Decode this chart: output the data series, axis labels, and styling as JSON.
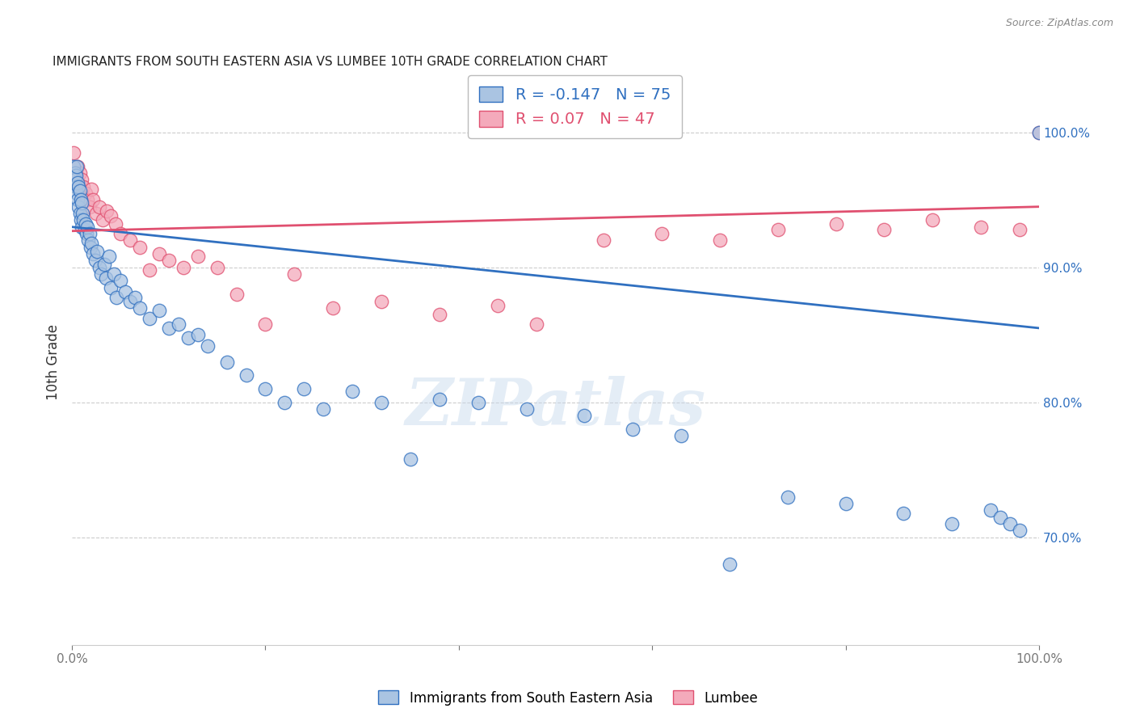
{
  "title": "IMMIGRANTS FROM SOUTH EASTERN ASIA VS LUMBEE 10TH GRADE CORRELATION CHART",
  "source": "Source: ZipAtlas.com",
  "ylabel": "10th Grade",
  "r_blue": -0.147,
  "n_blue": 75,
  "r_pink": 0.07,
  "n_pink": 47,
  "blue_color": "#aac4e2",
  "pink_color": "#f4aabb",
  "blue_line_color": "#3070c0",
  "pink_line_color": "#e05070",
  "grid_color": "#cccccc",
  "right_axis_color": "#3070c0",
  "watermark": "ZIPatlas",
  "xlim": [
    0.0,
    1.0
  ],
  "ylim": [
    0.62,
    1.04
  ],
  "blue_x": [
    0.002,
    0.003,
    0.003,
    0.004,
    0.004,
    0.005,
    0.005,
    0.006,
    0.006,
    0.007,
    0.007,
    0.008,
    0.008,
    0.009,
    0.009,
    0.01,
    0.01,
    0.011,
    0.012,
    0.013,
    0.014,
    0.015,
    0.016,
    0.017,
    0.018,
    0.019,
    0.02,
    0.022,
    0.024,
    0.026,
    0.028,
    0.03,
    0.033,
    0.035,
    0.038,
    0.04,
    0.043,
    0.046,
    0.05,
    0.055,
    0.06,
    0.065,
    0.07,
    0.08,
    0.09,
    0.1,
    0.11,
    0.12,
    0.13,
    0.14,
    0.16,
    0.18,
    0.2,
    0.22,
    0.24,
    0.26,
    0.29,
    0.32,
    0.35,
    0.38,
    0.42,
    0.47,
    0.53,
    0.58,
    0.63,
    0.68,
    0.74,
    0.8,
    0.86,
    0.91,
    0.95,
    0.96,
    0.97,
    0.98,
    1.0
  ],
  "blue_y": [
    0.975,
    0.97,
    0.965,
    0.968,
    0.96,
    0.975,
    0.955,
    0.963,
    0.95,
    0.96,
    0.945,
    0.957,
    0.94,
    0.95,
    0.935,
    0.948,
    0.93,
    0.94,
    0.935,
    0.928,
    0.932,
    0.925,
    0.93,
    0.92,
    0.925,
    0.915,
    0.918,
    0.91,
    0.905,
    0.912,
    0.9,
    0.895,
    0.902,
    0.892,
    0.908,
    0.885,
    0.895,
    0.878,
    0.89,
    0.882,
    0.875,
    0.878,
    0.87,
    0.862,
    0.868,
    0.855,
    0.858,
    0.848,
    0.85,
    0.842,
    0.83,
    0.82,
    0.81,
    0.8,
    0.81,
    0.795,
    0.808,
    0.8,
    0.758,
    0.802,
    0.8,
    0.795,
    0.79,
    0.78,
    0.775,
    0.68,
    0.73,
    0.725,
    0.718,
    0.71,
    0.72,
    0.715,
    0.71,
    0.705,
    1.0
  ],
  "pink_x": [
    0.002,
    0.004,
    0.005,
    0.006,
    0.007,
    0.008,
    0.009,
    0.01,
    0.012,
    0.014,
    0.016,
    0.018,
    0.02,
    0.022,
    0.025,
    0.028,
    0.032,
    0.036,
    0.04,
    0.045,
    0.05,
    0.06,
    0.07,
    0.08,
    0.09,
    0.1,
    0.115,
    0.13,
    0.15,
    0.17,
    0.2,
    0.23,
    0.27,
    0.32,
    0.38,
    0.44,
    0.48,
    0.55,
    0.61,
    0.67,
    0.73,
    0.79,
    0.84,
    0.89,
    0.94,
    0.98,
    1.0
  ],
  "pink_y": [
    0.985,
    0.97,
    0.965,
    0.975,
    0.96,
    0.97,
    0.955,
    0.965,
    0.96,
    0.955,
    0.95,
    0.945,
    0.958,
    0.95,
    0.94,
    0.945,
    0.935,
    0.942,
    0.938,
    0.932,
    0.925,
    0.92,
    0.915,
    0.898,
    0.91,
    0.905,
    0.9,
    0.908,
    0.9,
    0.88,
    0.858,
    0.895,
    0.87,
    0.875,
    0.865,
    0.872,
    0.858,
    0.92,
    0.925,
    0.92,
    0.928,
    0.932,
    0.928,
    0.935,
    0.93,
    0.928,
    1.0
  ],
  "blue_trendline_x": [
    0.0,
    1.0
  ],
  "blue_trendline_y": [
    0.93,
    0.855
  ],
  "pink_trendline_x": [
    0.0,
    1.0
  ],
  "pink_trendline_y": [
    0.927,
    0.945
  ]
}
